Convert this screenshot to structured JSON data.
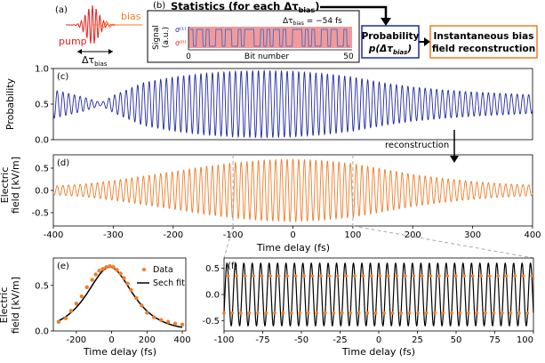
{
  "colors": {
    "pump": "#e8201e",
    "bias": "#f07c28",
    "probability": "#1f2aa3",
    "field": "#f07c28",
    "signal_bg": "#f29a9a",
    "signal_trace": "#4a73c8",
    "signal_sigma0": "#e8201e",
    "fit": "#000000",
    "prob_box_border": "#1f2aa3",
    "recon_box_border": "#f07c28",
    "zoom_lines": "#aaaaaa"
  },
  "panel_a": {
    "label": "(a)",
    "pump_label": "pump",
    "bias_label": "bias",
    "delay_label": "Δτ",
    "delay_sub": "bias"
  },
  "panel_b": {
    "label": "(b)",
    "statistics_text": "Statistics (for each Δτ",
    "statistics_sub": "bias",
    "statistics_close": ")",
    "ylabel_line1": "Signal",
    "ylabel_line2": "(a.u.)",
    "sigma1": "σ⁽¹⁾",
    "sigma0": "σ⁽⁰⁾",
    "delay_text": "Δτ",
    "delay_sub": "bias",
    "delay_value": " = −54 fs",
    "xlabel": "Bit number",
    "x_min": "0",
    "x_max": "50",
    "bits": [
      1,
      0,
      1,
      1,
      0,
      1,
      0,
      0,
      1,
      1,
      0,
      1,
      1,
      0,
      0,
      1,
      0,
      1,
      1,
      1,
      0,
      0,
      1,
      0,
      1,
      0,
      1,
      1,
      0,
      1,
      0,
      0,
      1,
      1,
      1,
      0,
      1,
      0,
      1,
      0,
      0,
      1,
      1,
      0,
      1,
      1,
      0,
      0,
      1,
      0
    ]
  },
  "prob_box": {
    "line1": "Probability",
    "line2": "p(Δτ",
    "line2_sub": "bias",
    "line2_close": ")"
  },
  "recon_box": {
    "line1": "Instantaneous bias",
    "line2": "field reconstruction"
  },
  "reconstruction_label": "reconstruction",
  "chart_data": [
    {
      "panel": "(c)",
      "type": "line",
      "ylabel": "Probability",
      "xlim": [
        -400,
        400
      ],
      "ylim": [
        0.0,
        1.0
      ],
      "yticks": [
        "0.0",
        "0.5",
        "1.0"
      ],
      "yticks_values": [
        0.0,
        0.5,
        1.0
      ],
      "series": [
        {
          "name": "probability",
          "center": 0.5,
          "period_fs": 9.6,
          "envelope_x": [
            -400,
            -350,
            -320,
            -300,
            -250,
            -200,
            -150,
            -100,
            -50,
            0,
            50,
            100,
            150,
            200,
            250,
            300,
            350,
            400
          ],
          "envelope_amp": [
            0.2,
            0.1,
            0.02,
            0.12,
            0.3,
            0.38,
            0.43,
            0.46,
            0.47,
            0.46,
            0.43,
            0.38,
            0.3,
            0.24,
            0.2,
            0.17,
            0.15,
            0.13
          ]
        }
      ]
    },
    {
      "panel": "(d)",
      "type": "line",
      "ylabel": "Electric field [kV/m]",
      "xlabel": "Time delay (fs)",
      "xlim": [
        -400,
        400
      ],
      "ylim": [
        -0.8,
        0.8
      ],
      "yticks": [
        "-0.5",
        "0.0",
        "0.5"
      ],
      "yticks_values": [
        -0.5,
        0.0,
        0.5
      ],
      "xticks": [
        "-400",
        "-300",
        "-200",
        "-100",
        "0",
        "100",
        "200",
        "300",
        "400"
      ],
      "xticks_values": [
        -400,
        -300,
        -200,
        -100,
        0,
        100,
        200,
        300,
        400
      ],
      "series": [
        {
          "name": "field",
          "center": 0.0,
          "period_fs": 9.6,
          "envelope_x": [
            -400,
            -350,
            -300,
            -250,
            -200,
            -150,
            -100,
            -50,
            0,
            50,
            100,
            150,
            200,
            250,
            300,
            350,
            400
          ],
          "envelope_amp": [
            0.1,
            0.14,
            0.22,
            0.32,
            0.42,
            0.53,
            0.62,
            0.68,
            0.7,
            0.67,
            0.6,
            0.48,
            0.36,
            0.27,
            0.2,
            0.15,
            0.12
          ]
        }
      ]
    },
    {
      "panel": "(e)",
      "type": "scatter",
      "ylabel": "Electric field [kV/m]",
      "xlabel": "Time delay (fs)",
      "xlim": [
        -330,
        420
      ],
      "ylim": [
        0.0,
        0.8
      ],
      "yticks": [
        "0.0",
        "0.5"
      ],
      "yticks_values": [
        0.0,
        0.5
      ],
      "xticks": [
        "-200",
        "0",
        "200",
        "400"
      ],
      "xticks_values": [
        -200,
        0,
        200,
        400
      ],
      "legend_data": "Data",
      "legend_fit": "Sech fit",
      "legend_placement": "top-right",
      "fit": {
        "amplitude": 0.7,
        "center": -10,
        "width_fs": 115
      },
      "x": [
        -300,
        -260,
        -230,
        -200,
        -170,
        -140,
        -110,
        -90,
        -70,
        -50,
        -30,
        -10,
        10,
        30,
        50,
        70,
        90,
        110,
        140,
        170,
        200,
        240,
        280,
        320,
        360,
        400
      ],
      "y": [
        0.1,
        0.14,
        0.22,
        0.3,
        0.38,
        0.48,
        0.56,
        0.62,
        0.66,
        0.68,
        0.7,
        0.71,
        0.7,
        0.67,
        0.63,
        0.58,
        0.52,
        0.45,
        0.36,
        0.28,
        0.2,
        0.15,
        0.12,
        0.1,
        0.08,
        0.07
      ]
    },
    {
      "panel": "(f)",
      "type": "line",
      "ylabel": "",
      "xlabel": "Time delay (fs)",
      "xlim": [
        -100,
        100
      ],
      "ylim": [
        -0.7,
        0.7
      ],
      "yticks": [
        "-0.5",
        "0.0",
        "0.5"
      ],
      "yticks_values": [
        -0.5,
        0.0,
        0.5
      ],
      "xticks": [
        "-100",
        "-75",
        "-50",
        "-25",
        "0",
        "25",
        "50",
        "75",
        "100"
      ],
      "xticks_values": [
        -100,
        -75,
        -50,
        -25,
        0,
        25,
        50,
        75,
        100
      ],
      "series": [
        {
          "name": "sech fit",
          "period_fs": 5.45,
          "amplitude": 0.6
        },
        {
          "name": "data",
          "period_fs": 5.45,
          "amplitude": 0.6
        }
      ]
    }
  ]
}
